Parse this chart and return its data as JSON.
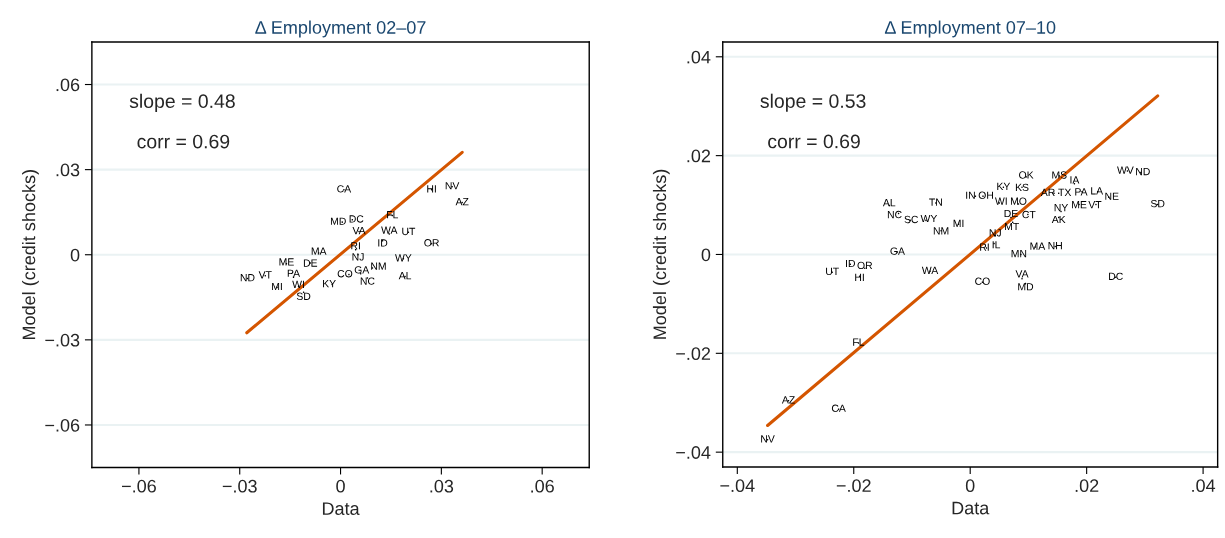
{
  "chart_data": [
    {
      "type": "scatter",
      "title": "Δ Employment 02–07",
      "xlabel": "Data",
      "ylabel": "Model (credit shocks)",
      "xlim": [
        -0.074,
        0.074
      ],
      "ylim": [
        -0.075,
        0.075
      ],
      "xticks": [
        {
          "value": -0.06,
          "label": "−.06"
        },
        {
          "value": -0.03,
          "label": "−.03"
        },
        0,
        {
          "value": 0.03,
          "label": ".03"
        },
        {
          "value": 0.06,
          "label": ".06"
        }
      ],
      "yticks": [
        {
          "value": -0.06,
          "label": "−.06"
        },
        {
          "value": -0.03,
          "label": "−.03"
        },
        0,
        {
          "value": 0.03,
          "label": ".03"
        },
        {
          "value": 0.06,
          "label": ".06"
        }
      ],
      "grid": "y",
      "marker": "none",
      "annotations": [
        "slope = 0.48",
        "corr = 0.69"
      ],
      "series": [
        {
          "color": "#000000",
          "x": [
            0.001,
            0.0271,
            0.0332,
            0.0362,
            0.0154,
            0.0035,
            0.0005,
            0.0055,
            0.0145,
            0.0202,
            0.0125,
            0.0271,
            0.0045,
            0.0052,
            0.0187,
            -0.0065,
            -0.0161,
            -0.009,
            0.0095,
            0.0192,
            0.008,
            0.006,
            0.0025,
            -0.0277,
            -0.0224,
            -0.014,
            -0.0189,
            -0.0125,
            -0.011,
            -0.0025
          ],
          "values": [
            0.0229,
            0.0229,
            0.024,
            0.0184,
            0.0138,
            0.0123,
            0.0115,
            0.0082,
            0.0073,
            0.0079,
            0.0049,
            0.0039,
            0.0018,
            0.0,
            -0.0014,
            0.0006,
            -0.0032,
            -0.0029,
            -0.0047,
            -0.0077,
            -0.0082,
            -0.0067,
            -0.007,
            -0.0084,
            -0.0074,
            -0.0079,
            -0.0115,
            -0.0111,
            -0.0132,
            -0.0105
          ],
          "value_labels": [
            "CA",
            "HI",
            "NV",
            "AZ",
            "FL",
            "DC",
            "MD",
            "VA",
            "WA",
            "UT",
            "ID",
            "OR",
            "RI",
            "NJ",
            "WY",
            "MA",
            "ME",
            "DE",
            "NM",
            "AL",
            "NC",
            "GA",
            "CO",
            "ND",
            "VT",
            "PA",
            "MI",
            "WI",
            "SD",
            "KY"
          ]
        },
        {
          "type": "line",
          "color": "#d45500",
          "x": [
            -0.0279,
            0.0362
          ],
          "values": [
            -0.0275,
            0.0361
          ]
        }
      ]
    },
    {
      "type": "scatter",
      "title": "Δ Employment 07–10",
      "xlabel": "Data",
      "ylabel": "Model (credit shocks)",
      "xlim": [
        -0.0425,
        0.0425
      ],
      "ylim": [
        -0.043,
        0.043
      ],
      "xticks": [
        {
          "value": -0.04,
          "label": "−.04"
        },
        {
          "value": -0.02,
          "label": "−.02"
        },
        0,
        {
          "value": 0.02,
          "label": ".02"
        },
        {
          "value": 0.04,
          "label": ".04"
        }
      ],
      "yticks": [
        {
          "value": -0.04,
          "label": "−.04"
        },
        {
          "value": -0.02,
          "label": "−.02"
        },
        0,
        {
          "value": 0.02,
          "label": ".02"
        },
        {
          "value": 0.04,
          "label": ".04"
        }
      ],
      "grid": "y",
      "marker": "none",
      "annotations": [
        "slope = 0.53",
        "corr = 0.69"
      ],
      "series": [
        {
          "color": "#000000",
          "x": [
            -0.0348,
            -0.0312,
            -0.0226,
            -0.0192,
            -0.0237,
            -0.0206,
            -0.0181,
            -0.019,
            -0.0125,
            -0.0069,
            0.0021,
            0.0089,
            0.0095,
            0.025,
            0.0087,
            0.0112,
            0.0146,
            0.0028,
            0.0041,
            0.0043,
            -0.005,
            -0.002,
            -0.0103,
            -0.0076,
            -0.0123,
            -0.0139,
            -0.0059,
            0.0009,
            0.0022,
            0.0057,
            0.0089,
            0.0096,
            0.005,
            0.0083,
            0.007,
            0.0099,
            0.0073,
            0.0153,
            0.0179,
            0.0144,
            0.0152,
            0.0192,
            0.0219,
            0.0238,
            0.0187,
            0.0216,
            0.0156,
            0.0152,
            0.0322,
            0.027,
            0.0293
          ],
          "values": [
            -0.0375,
            -0.0296,
            -0.0313,
            -0.0179,
            -0.0036,
            -0.002,
            -0.0028,
            -0.0044,
            0.0005,
            -0.0034,
            -0.0056,
            -0.0049,
            -0.0059,
            -0.0046,
            0.0,
            0.0015,
            0.0016,
            0.0013,
            0.0022,
            0.0038,
            0.0048,
            0.0061,
            0.0069,
            0.0069,
            0.0083,
            0.0099,
            0.0104,
            0.0118,
            0.0118,
            0.0136,
            0.0136,
            0.0157,
            0.0104,
            0.0102,
            0.0075,
            0.0081,
            0.0065,
            0.0159,
            0.0143,
            0.0124,
            0.0124,
            0.0127,
            0.0127,
            0.0116,
            0.0101,
            0.0101,
            0.0087,
            0.0075,
            0.0101,
            0.0169,
            0.0166
          ],
          "value_labels": [
            "NV",
            "AZ",
            "CA",
            "FL",
            "UT",
            "ID",
            "OR",
            "HI",
            "GA",
            "WA",
            "CO",
            "VA",
            "MD",
            "DC",
            "MN",
            "MA",
            "NH",
            "RI",
            "IL",
            "NJ",
            "NM",
            "MI",
            "SC",
            "WY",
            "NC",
            "AL",
            "TN",
            "IN",
            "OH",
            "KY",
            "KS",
            "OK",
            "WI",
            "MO",
            "DE",
            "CT",
            "MT",
            "MS",
            "IA",
            "AR",
            "TX",
            "PA",
            "LA",
            "NE",
            "ME",
            "VT",
            "NY",
            "AK",
            "SD",
            "WV",
            "ND"
          ]
        },
        {
          "type": "line",
          "color": "#d45500",
          "x": [
            -0.0348,
            0.0322
          ],
          "values": [
            -0.0346,
            0.0321
          ]
        }
      ]
    }
  ]
}
